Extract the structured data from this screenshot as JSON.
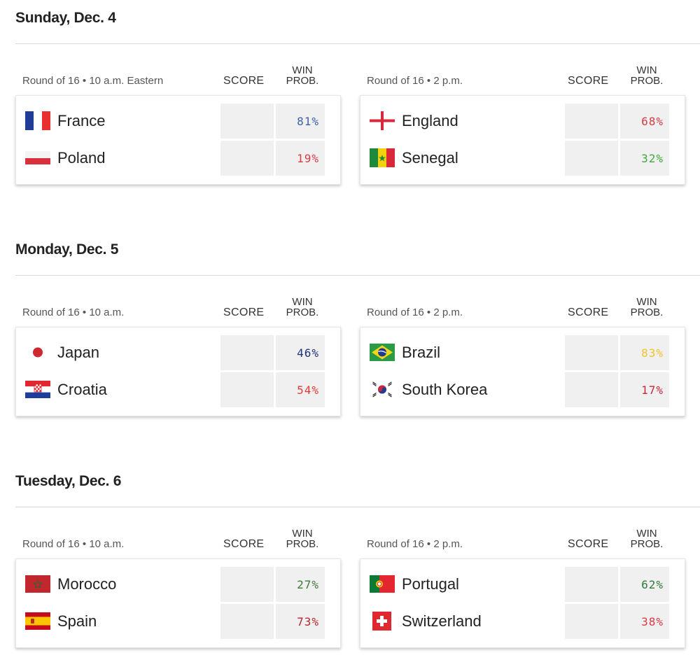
{
  "days": [
    {
      "title": "Sunday, Dec. 4",
      "matches": [
        {
          "label": "Round of 16 • 10 a.m. Eastern",
          "score_header": "SCORE",
          "prob_header": [
            "WIN",
            "PROB."
          ],
          "teams": [
            {
              "name": "France",
              "flag": "france-flag-icon",
              "prob": "81%",
              "prob_color": "#3f5fa8"
            },
            {
              "name": "Poland",
              "flag": "poland-flag-icon",
              "prob": "19%",
              "prob_color": "#d93b44"
            }
          ]
        },
        {
          "label": "Round of 16 • 2 p.m.",
          "score_header": "SCORE",
          "prob_header": [
            "WIN",
            "PROB."
          ],
          "teams": [
            {
              "name": "England",
              "flag": "england-flag-icon",
              "prob": "68%",
              "prob_color": "#d93b44"
            },
            {
              "name": "Senegal",
              "flag": "senegal-flag-icon",
              "prob": "32%",
              "prob_color": "#3fa83f"
            }
          ]
        }
      ]
    },
    {
      "title": "Monday, Dec. 5",
      "matches": [
        {
          "label": "Round of 16 • 10 a.m.",
          "score_header": "SCORE",
          "prob_header": [
            "WIN",
            "PROB."
          ],
          "teams": [
            {
              "name": "Japan",
              "flag": "japan-flag-icon",
              "prob": "46%",
              "prob_color": "#23307a"
            },
            {
              "name": "Croatia",
              "flag": "croatia-flag-icon",
              "prob": "54%",
              "prob_color": "#e03b3b"
            }
          ]
        },
        {
          "label": "Round of 16 • 2 p.m.",
          "score_header": "SCORE",
          "prob_header": [
            "WIN",
            "PROB."
          ],
          "teams": [
            {
              "name": "Brazil",
              "flag": "brazil-flag-icon",
              "prob": "83%",
              "prob_color": "#f2c230"
            },
            {
              "name": "South Korea",
              "flag": "south-korea-flag-icon",
              "prob": "17%",
              "prob_color": "#c8283f"
            }
          ]
        }
      ]
    },
    {
      "title": "Tuesday, Dec. 6",
      "matches": [
        {
          "label": "Round of 16 • 10 a.m.",
          "score_header": "SCORE",
          "prob_header": [
            "WIN",
            "PROB."
          ],
          "teams": [
            {
              "name": "Morocco",
              "flag": "morocco-flag-icon",
              "prob": "27%",
              "prob_color": "#3c7a3c"
            },
            {
              "name": "Spain",
              "flag": "spain-flag-icon",
              "prob": "73%",
              "prob_color": "#b3292e"
            }
          ]
        },
        {
          "label": "Round of 16 • 2 p.m.",
          "score_header": "SCORE",
          "prob_header": [
            "WIN",
            "PROB."
          ],
          "teams": [
            {
              "name": "Portugal",
              "flag": "portugal-flag-icon",
              "prob": "62%",
              "prob_color": "#2e7a3a"
            },
            {
              "name": "Switzerland",
              "flag": "switzerland-flag-icon",
              "prob": "38%",
              "prob_color": "#d93b44"
            }
          ]
        }
      ]
    }
  ]
}
